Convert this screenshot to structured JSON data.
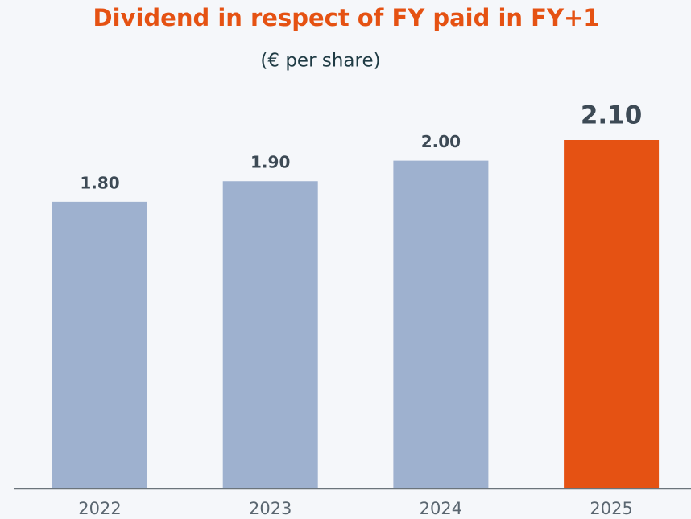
{
  "chart_data": {
    "type": "bar",
    "title": "Dividend in respect of FY paid in FY+1",
    "subtitle": "(€ per share)",
    "categories": [
      "2022",
      "2023",
      "2024",
      "2025"
    ],
    "values": [
      1.8,
      1.9,
      2.0,
      2.1
    ],
    "value_labels": [
      "1.80",
      "1.90",
      "2.00",
      "2.10"
    ],
    "colors": [
      "#9eb1cf",
      "#9eb1cf",
      "#9eb1cf",
      "#e55213"
    ],
    "ylim": [
      0.41,
      2.1
    ],
    "grid": false
  }
}
